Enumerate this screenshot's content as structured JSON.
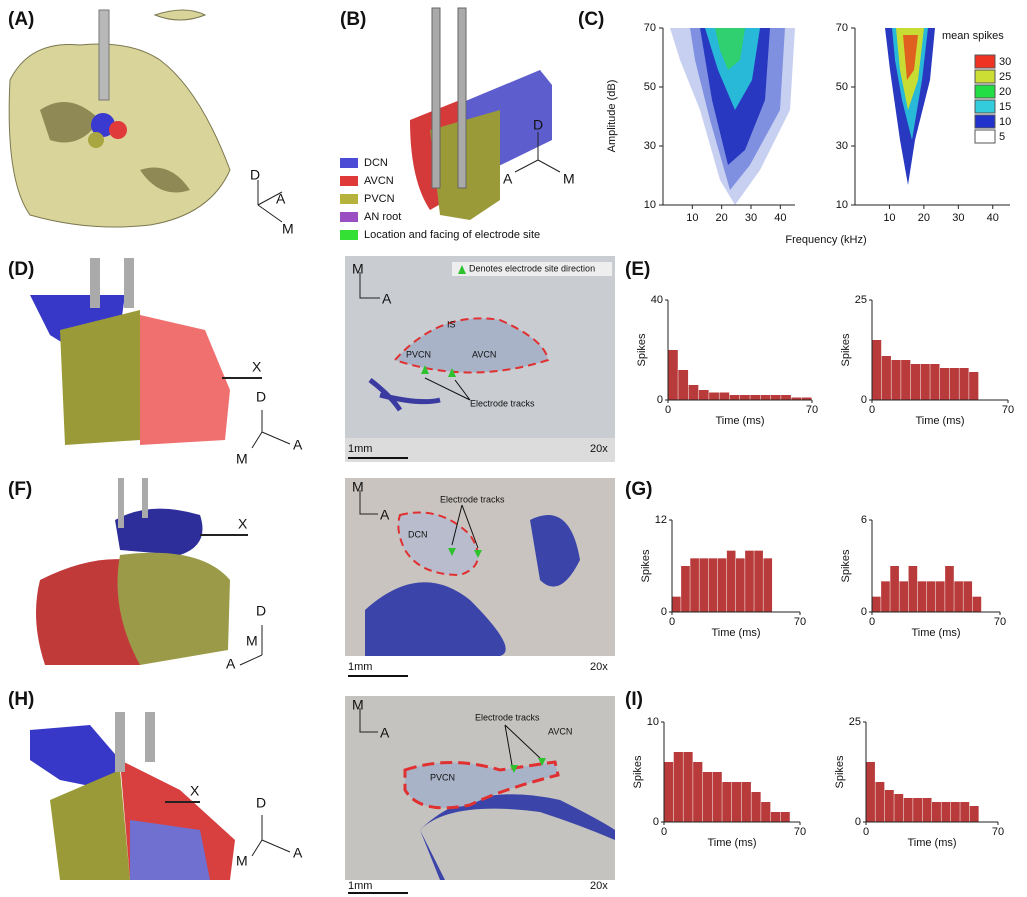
{
  "panel_a": {
    "label": "(A)",
    "axes": {
      "d": "D",
      "a": "A",
      "m": "M"
    }
  },
  "panel_b": {
    "label": "(B)",
    "axes": {
      "d": "D",
      "a": "A",
      "m": "M"
    },
    "legend": [
      {
        "name": "DCN",
        "color": "#4b4bd6"
      },
      {
        "name": "AVCN",
        "color": "#e0393a"
      },
      {
        "name": "PVCN",
        "color": "#b5b33c"
      },
      {
        "name": "AN root",
        "color": "#9a4fc2"
      },
      {
        "name": "Location and facing of electrode site",
        "color": "#33e033"
      }
    ]
  },
  "panel_c": {
    "label": "(C)",
    "ylabel": "Amplitude (dB)",
    "xlabel": "Frequency (kHz)",
    "xlim": [
      0,
      45
    ],
    "xticks": [
      10,
      20,
      30,
      40
    ],
    "ylim": [
      10,
      70
    ],
    "yticks": [
      10,
      30,
      50,
      70
    ],
    "colorbar": {
      "title": "mean spikes",
      "levels": [
        30,
        25,
        20,
        15,
        10,
        5
      ],
      "colors": [
        "#ee3322",
        "#ccdd33",
        "#22dd44",
        "#33ccdd",
        "#2233cc",
        "#ffffff"
      ]
    }
  },
  "panel_d": {
    "label": "(D)",
    "axes": {
      "d": "D",
      "a": "A",
      "m": "M"
    },
    "marker": "X"
  },
  "micro_d": {
    "orient": {
      "m": "M",
      "a": "A"
    },
    "note": "Denotes electrode site direction",
    "regions": [
      "IS",
      "PVCN",
      "AVCN"
    ],
    "tracks": "Electrode tracks",
    "scale": "1mm",
    "mag": "20x"
  },
  "panel_e": {
    "label": "(E)",
    "histograms": [
      {
        "ylabel": "Spikes",
        "xlabel": "Time (ms)",
        "xlim": [
          0,
          70
        ],
        "xticks": [
          0,
          70
        ],
        "ylim": [
          0,
          40
        ],
        "yticks": [
          0,
          40
        ],
        "bins": [
          0,
          5,
          10,
          15,
          20,
          25,
          30,
          35,
          40,
          45,
          50,
          55,
          60,
          65,
          70
        ],
        "values": [
          20,
          12,
          6,
          4,
          3,
          3,
          2,
          2,
          2,
          2,
          2,
          2,
          1,
          1
        ]
      },
      {
        "ylabel": "Spikes",
        "xlabel": "Time (ms)",
        "xlim": [
          0,
          70
        ],
        "xticks": [
          0,
          70
        ],
        "ylim": [
          0,
          25
        ],
        "yticks": [
          0,
          25
        ],
        "bins": [
          0,
          5,
          10,
          15,
          20,
          25,
          30,
          35,
          40,
          45,
          50,
          55,
          60,
          65,
          70
        ],
        "values": [
          15,
          11,
          10,
          10,
          9,
          9,
          9,
          8,
          8,
          8,
          7,
          0,
          0,
          0
        ]
      }
    ]
  },
  "panel_f": {
    "label": "(F)",
    "axes": {
      "d": "D",
      "a": "A",
      "m": "M"
    },
    "marker": "X"
  },
  "micro_f": {
    "orient": {
      "m": "M",
      "a": "A"
    },
    "tracks": "Electrode tracks",
    "region": "DCN",
    "scale": "1mm",
    "mag": "20x"
  },
  "panel_g": {
    "label": "(G)",
    "histograms": [
      {
        "ylabel": "Spikes",
        "xlabel": "Time (ms)",
        "xlim": [
          0,
          70
        ],
        "xticks": [
          0,
          70
        ],
        "ylim": [
          0,
          12
        ],
        "yticks": [
          0,
          12
        ],
        "bins": [
          0,
          5,
          10,
          15,
          20,
          25,
          30,
          35,
          40,
          45,
          50,
          55,
          60,
          65,
          70
        ],
        "values": [
          2,
          6,
          7,
          7,
          7,
          7,
          8,
          7,
          8,
          8,
          7,
          0,
          0,
          0
        ]
      },
      {
        "ylabel": "Spikes",
        "xlabel": "Time (ms)",
        "xlim": [
          0,
          70
        ],
        "xticks": [
          0,
          70
        ],
        "ylim": [
          0,
          6
        ],
        "yticks": [
          0,
          6
        ],
        "bins": [
          0,
          5,
          10,
          15,
          20,
          25,
          30,
          35,
          40,
          45,
          50,
          55,
          60,
          65,
          70
        ],
        "values": [
          1,
          2,
          3,
          2,
          3,
          2,
          2,
          2,
          3,
          2,
          2,
          1,
          0,
          0
        ]
      }
    ]
  },
  "panel_h": {
    "label": "(H)",
    "axes": {
      "d": "D",
      "a": "A",
      "m": "M"
    },
    "marker": "X"
  },
  "micro_h": {
    "orient": {
      "m": "M",
      "a": "A"
    },
    "tracks": "Electrode tracks",
    "regions": [
      "AVCN",
      "PVCN"
    ],
    "scale": "1mm",
    "mag": "20x"
  },
  "panel_i": {
    "label": "(I)",
    "histograms": [
      {
        "ylabel": "Spikes",
        "xlabel": "Time (ms)",
        "xlim": [
          0,
          70
        ],
        "xticks": [
          0,
          70
        ],
        "ylim": [
          0,
          10
        ],
        "yticks": [
          0,
          10
        ],
        "bins": [
          0,
          5,
          10,
          15,
          20,
          25,
          30,
          35,
          40,
          45,
          50,
          55,
          60,
          65,
          70
        ],
        "values": [
          6,
          7,
          7,
          6,
          5,
          5,
          4,
          4,
          4,
          3,
          2,
          1,
          1,
          0
        ]
      },
      {
        "ylabel": "Spikes",
        "xlabel": "Time (ms)",
        "xlim": [
          0,
          70
        ],
        "xticks": [
          0,
          70
        ],
        "ylim": [
          0,
          25
        ],
        "yticks": [
          0,
          25
        ],
        "bins": [
          0,
          5,
          10,
          15,
          20,
          25,
          30,
          35,
          40,
          45,
          50,
          55,
          60,
          65,
          70
        ],
        "values": [
          15,
          10,
          8,
          7,
          6,
          6,
          6,
          5,
          5,
          5,
          5,
          4,
          0,
          0
        ]
      }
    ]
  }
}
